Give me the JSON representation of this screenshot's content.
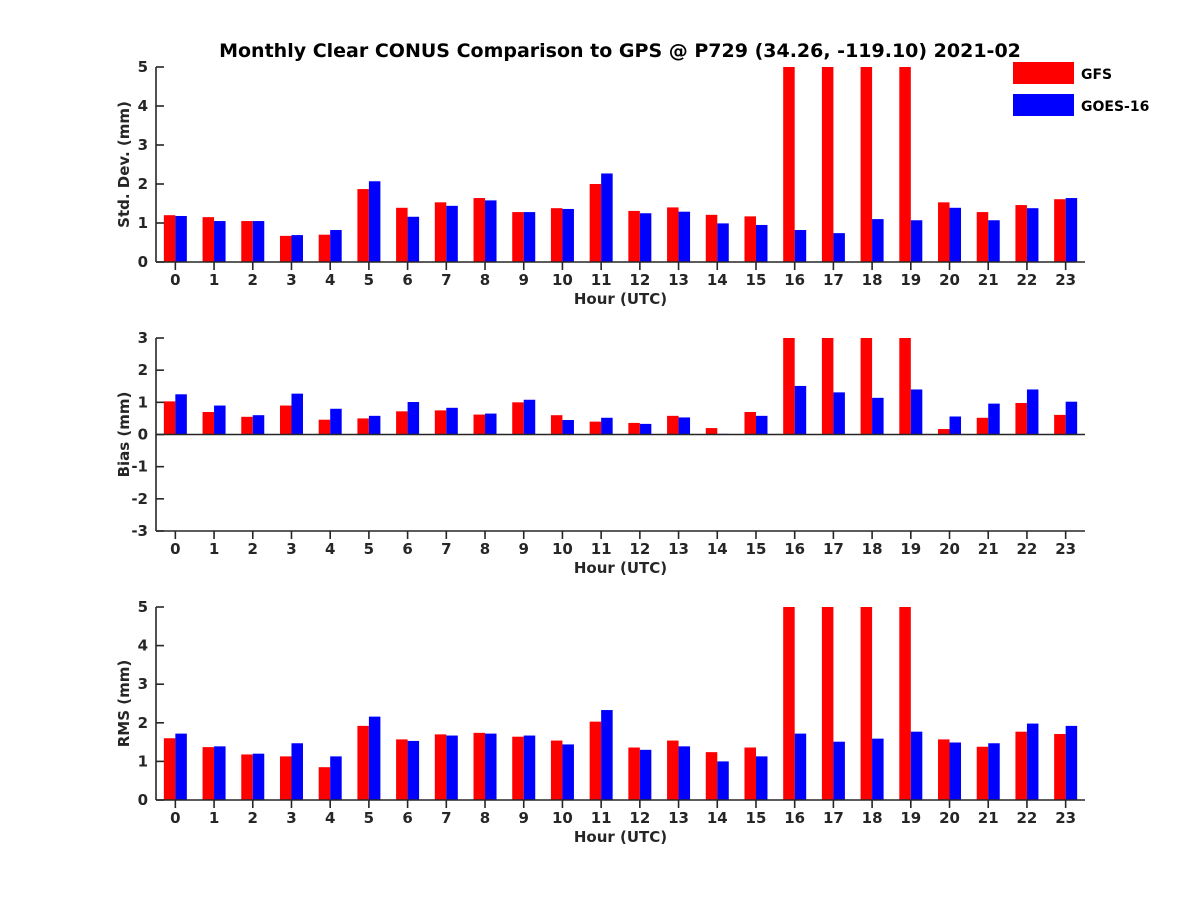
{
  "title": "Monthly Clear CONUS Comparison to GPS @ P729 (34.26, -119.10) 2021-02",
  "legend": [
    {
      "label": "GFS",
      "color": "#ff0000"
    },
    {
      "label": "GOES-16",
      "color": "#0000ff"
    }
  ],
  "chart_data": [
    {
      "type": "bar",
      "categories": [
        "0",
        "1",
        "2",
        "3",
        "4",
        "5",
        "6",
        "7",
        "8",
        "9",
        "10",
        "11",
        "12",
        "13",
        "14",
        "15",
        "16",
        "17",
        "18",
        "19",
        "20",
        "21",
        "22",
        "23"
      ],
      "xlabel": "Hour (UTC)",
      "ylabel": "Std. Dev. (mm)",
      "ylim": [
        0,
        5
      ],
      "yticks": [
        0,
        1,
        2,
        3,
        4,
        5
      ],
      "series": [
        {
          "name": "GFS",
          "color": "#ff0000",
          "values": [
            1.2,
            1.15,
            1.05,
            0.67,
            0.7,
            1.87,
            1.39,
            1.53,
            1.64,
            1.28,
            1.38,
            2.0,
            1.31,
            1.4,
            1.21,
            1.17,
            5,
            5,
            5,
            5,
            1.53,
            1.28,
            1.46,
            1.61
          ]
        },
        {
          "name": "GOES-16",
          "color": "#0000ff",
          "values": [
            1.18,
            1.05,
            1.05,
            0.69,
            0.82,
            2.07,
            1.16,
            1.44,
            1.58,
            1.28,
            1.36,
            2.27,
            1.25,
            1.29,
            0.99,
            0.95,
            0.82,
            0.74,
            1.1,
            1.07,
            1.39,
            1.07,
            1.38,
            1.64
          ]
        }
      ]
    },
    {
      "type": "bar",
      "categories": [
        "0",
        "1",
        "2",
        "3",
        "4",
        "5",
        "6",
        "7",
        "8",
        "9",
        "10",
        "11",
        "12",
        "13",
        "14",
        "15",
        "16",
        "17",
        "18",
        "19",
        "20",
        "21",
        "22",
        "23"
      ],
      "xlabel": "Hour (UTC)",
      "ylabel": "Bias (mm)",
      "ylim": [
        -3,
        3
      ],
      "yticks": [
        -3,
        -2,
        -1,
        0,
        1,
        2,
        3
      ],
      "series": [
        {
          "name": "GFS",
          "color": "#ff0000",
          "values": [
            1.03,
            0.7,
            0.55,
            0.9,
            0.46,
            0.5,
            0.72,
            0.75,
            0.62,
            1.0,
            0.6,
            0.4,
            0.36,
            0.58,
            0.2,
            0.7,
            3,
            3,
            3,
            3,
            0.17,
            0.52,
            0.98,
            0.61
          ]
        },
        {
          "name": "GOES-16",
          "color": "#0000ff",
          "values": [
            1.25,
            0.9,
            0.6,
            1.27,
            0.8,
            0.58,
            1.01,
            0.83,
            0.65,
            1.08,
            0.45,
            0.52,
            0.33,
            0.53,
            0.02,
            0.58,
            1.51,
            1.31,
            1.14,
            1.4,
            0.56,
            0.96,
            1.4,
            1.02
          ]
        }
      ]
    },
    {
      "type": "bar",
      "categories": [
        "0",
        "1",
        "2",
        "3",
        "4",
        "5",
        "6",
        "7",
        "8",
        "9",
        "10",
        "11",
        "12",
        "13",
        "14",
        "15",
        "16",
        "17",
        "18",
        "19",
        "20",
        "21",
        "22",
        "23"
      ],
      "xlabel": "Hour (UTC)",
      "ylabel": "RMS (mm)",
      "ylim": [
        0,
        5
      ],
      "yticks": [
        0,
        1,
        2,
        3,
        4,
        5
      ],
      "series": [
        {
          "name": "GFS",
          "color": "#ff0000",
          "values": [
            1.6,
            1.37,
            1.18,
            1.13,
            0.85,
            1.92,
            1.57,
            1.7,
            1.74,
            1.64,
            1.54,
            2.03,
            1.36,
            1.54,
            1.24,
            1.36,
            5,
            5,
            5,
            5,
            1.57,
            1.38,
            1.77,
            1.71
          ]
        },
        {
          "name": "GOES-16",
          "color": "#0000ff",
          "values": [
            1.72,
            1.39,
            1.2,
            1.47,
            1.13,
            2.16,
            1.53,
            1.67,
            1.72,
            1.67,
            1.44,
            2.33,
            1.3,
            1.39,
            1.0,
            1.13,
            1.72,
            1.51,
            1.59,
            1.77,
            1.49,
            1.47,
            1.98,
            1.92
          ]
        }
      ]
    }
  ]
}
